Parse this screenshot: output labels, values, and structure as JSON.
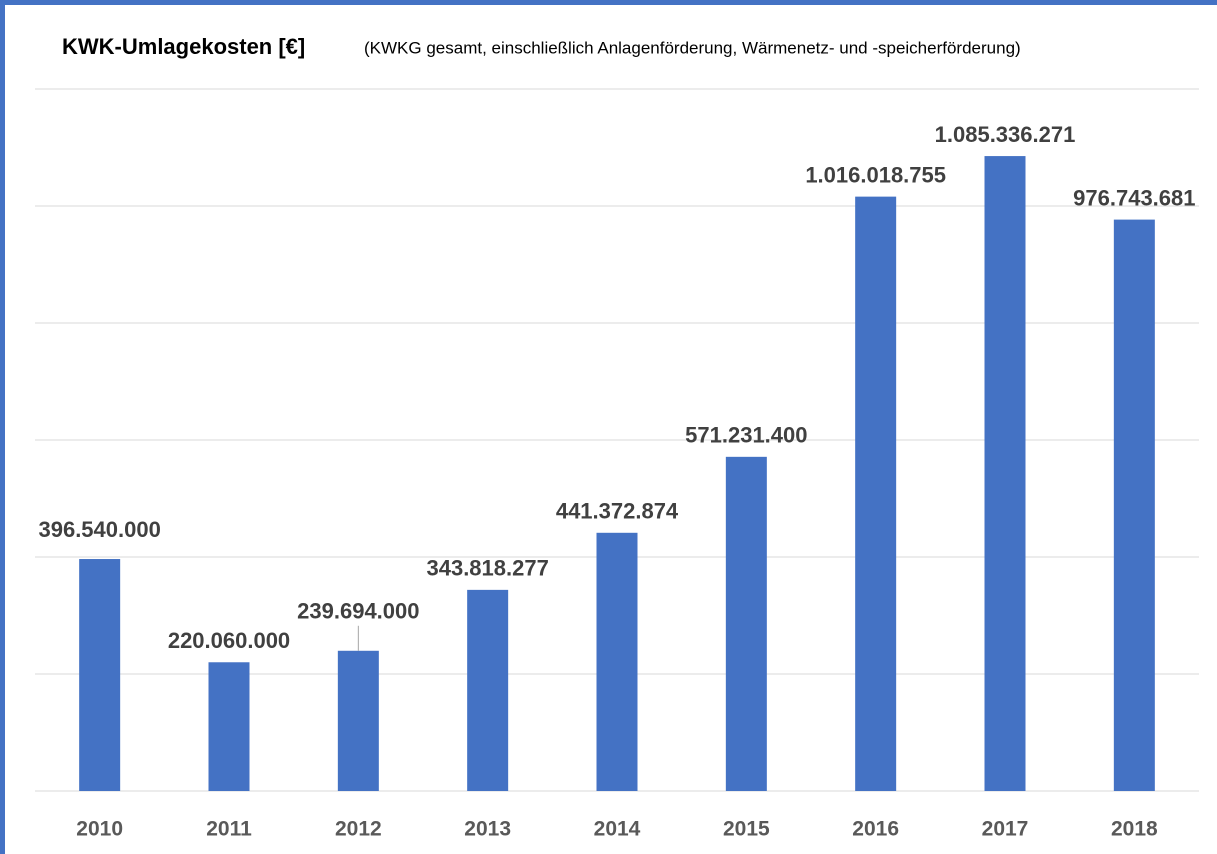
{
  "chart_data": {
    "type": "bar",
    "title": "KWK-Umlagekosten [€]",
    "subtitle": "(KWKG gesamt, einschließlich Anlagenförderung, Wärmenetz- und -speicherförderung)",
    "categories": [
      "2010",
      "2011",
      "2012",
      "2013",
      "2014",
      "2015",
      "2016",
      "2017",
      "2018"
    ],
    "values": [
      396540000,
      220060000,
      239694000,
      343818277,
      441372874,
      571231400,
      1016018755,
      1085336271,
      976743681
    ],
    "value_labels": [
      "396.540.000",
      "220.060.000",
      "239.694.000",
      "343.818.277",
      "441.372.874",
      "571.231.400",
      "1.016.018.755",
      "1.085.336.271",
      "976.743.681"
    ],
    "color": "#4472c4",
    "ylim": [
      0,
      1200000000
    ],
    "yticks": [
      0,
      200000000,
      400000000,
      600000000,
      800000000,
      1000000000,
      1200000000
    ],
    "grid": true
  }
}
